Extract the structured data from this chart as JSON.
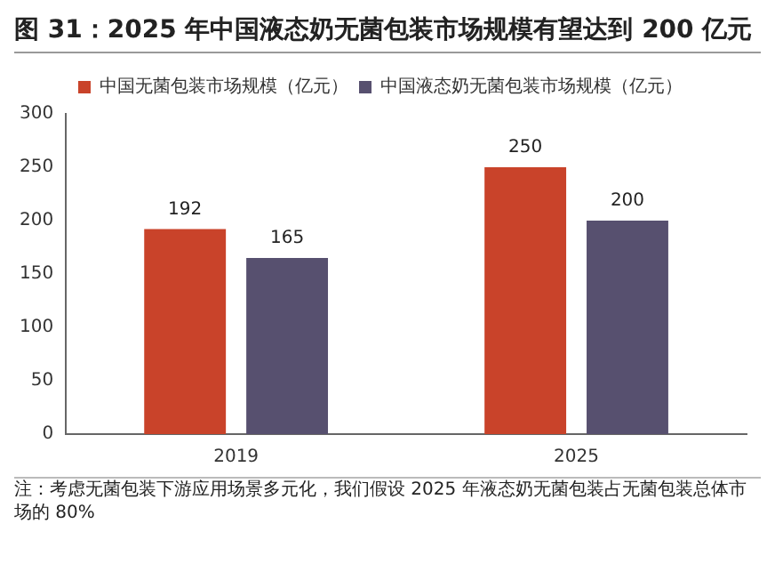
{
  "chart_data": {
    "type": "bar",
    "title": "图 31：2025 年中国液态奶无菌包装市场规模有望达到 200 亿元",
    "categories": [
      "2019",
      "2025"
    ],
    "series": [
      {
        "name": "中国无菌包装市场规模（亿元）",
        "color": "#c9432a",
        "values": [
          192,
          250
        ]
      },
      {
        "name": "中国液态奶无菌包装市场规模（亿元）",
        "color": "#57506f",
        "values": [
          165,
          200
        ]
      }
    ],
    "ylim": [
      0,
      300
    ],
    "yticks": [
      0,
      50,
      100,
      150,
      200,
      250,
      300
    ],
    "grid": false,
    "legend": "top",
    "data_labels": true,
    "annotations": [
      "注：考虑无菌包装下游应用场景多元化，我们假设 2025 年液态奶无菌包装占无菌包装总体市场的 80%"
    ]
  }
}
